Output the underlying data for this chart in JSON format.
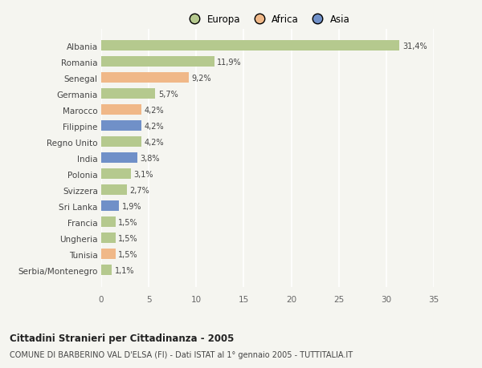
{
  "countries": [
    "Albania",
    "Romania",
    "Senegal",
    "Germania",
    "Marocco",
    "Filippine",
    "Regno Unito",
    "India",
    "Polonia",
    "Svizzera",
    "Sri Lanka",
    "Francia",
    "Ungheria",
    "Tunisia",
    "Serbia/Montenegro"
  ],
  "values": [
    31.4,
    11.9,
    9.2,
    5.7,
    4.2,
    4.2,
    4.2,
    3.8,
    3.1,
    2.7,
    1.9,
    1.5,
    1.5,
    1.5,
    1.1
  ],
  "labels": [
    "31,4%",
    "11,9%",
    "9,2%",
    "5,7%",
    "4,2%",
    "4,2%",
    "4,2%",
    "3,8%",
    "3,1%",
    "2,7%",
    "1,9%",
    "1,5%",
    "1,5%",
    "1,5%",
    "1,1%"
  ],
  "continents": [
    "Europa",
    "Europa",
    "Africa",
    "Europa",
    "Africa",
    "Asia",
    "Europa",
    "Asia",
    "Europa",
    "Europa",
    "Asia",
    "Europa",
    "Europa",
    "Africa",
    "Europa"
  ],
  "colors": {
    "Europa": "#b5c98e",
    "Africa": "#f0b888",
    "Asia": "#7090c8"
  },
  "title1": "Cittadini Stranieri per Cittadinanza - 2005",
  "title2": "COMUNE DI BARBERINO VAL D'ELSA (FI) - Dati ISTAT al 1° gennaio 2005 - TUTTITALIA.IT",
  "xlim": [
    0,
    35
  ],
  "xticks": [
    0,
    5,
    10,
    15,
    20,
    25,
    30,
    35
  ],
  "background_color": "#f5f5f0",
  "grid_color": "#ffffff",
  "bar_height": 0.65
}
